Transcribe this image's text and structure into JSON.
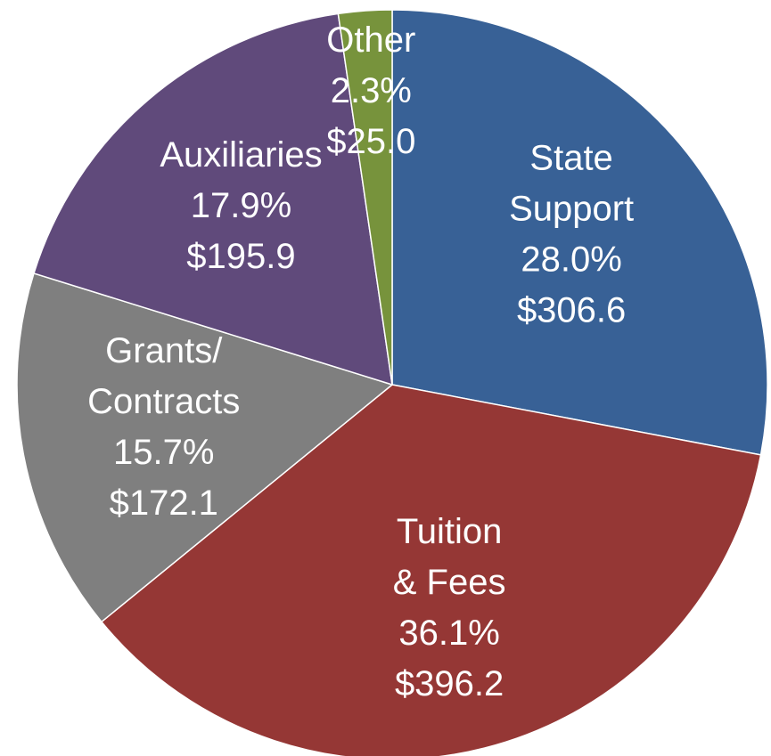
{
  "chart_data": {
    "type": "pie",
    "categories": [
      [
        "State",
        "Support"
      ],
      [
        "Tuition",
        "& Fees"
      ],
      [
        "Grants/",
        "Contracts"
      ],
      [
        "Auxiliaries"
      ],
      [
        "Other"
      ]
    ],
    "values": [
      28.0,
      36.1,
      15.7,
      17.9,
      2.3
    ],
    "value_labels": [
      "28.0%",
      "36.1%",
      "15.7%",
      "17.9%",
      "2.3%"
    ],
    "amounts": [
      306.6,
      396.2,
      172.1,
      195.9,
      25.0
    ],
    "amount_labels": [
      "$306.6",
      "$396.2",
      "$172.1",
      "$195.9",
      "$25.0"
    ],
    "colors": [
      "#386196",
      "#953735",
      "#7f7f7f",
      "#604a7b",
      "#77933c"
    ]
  }
}
